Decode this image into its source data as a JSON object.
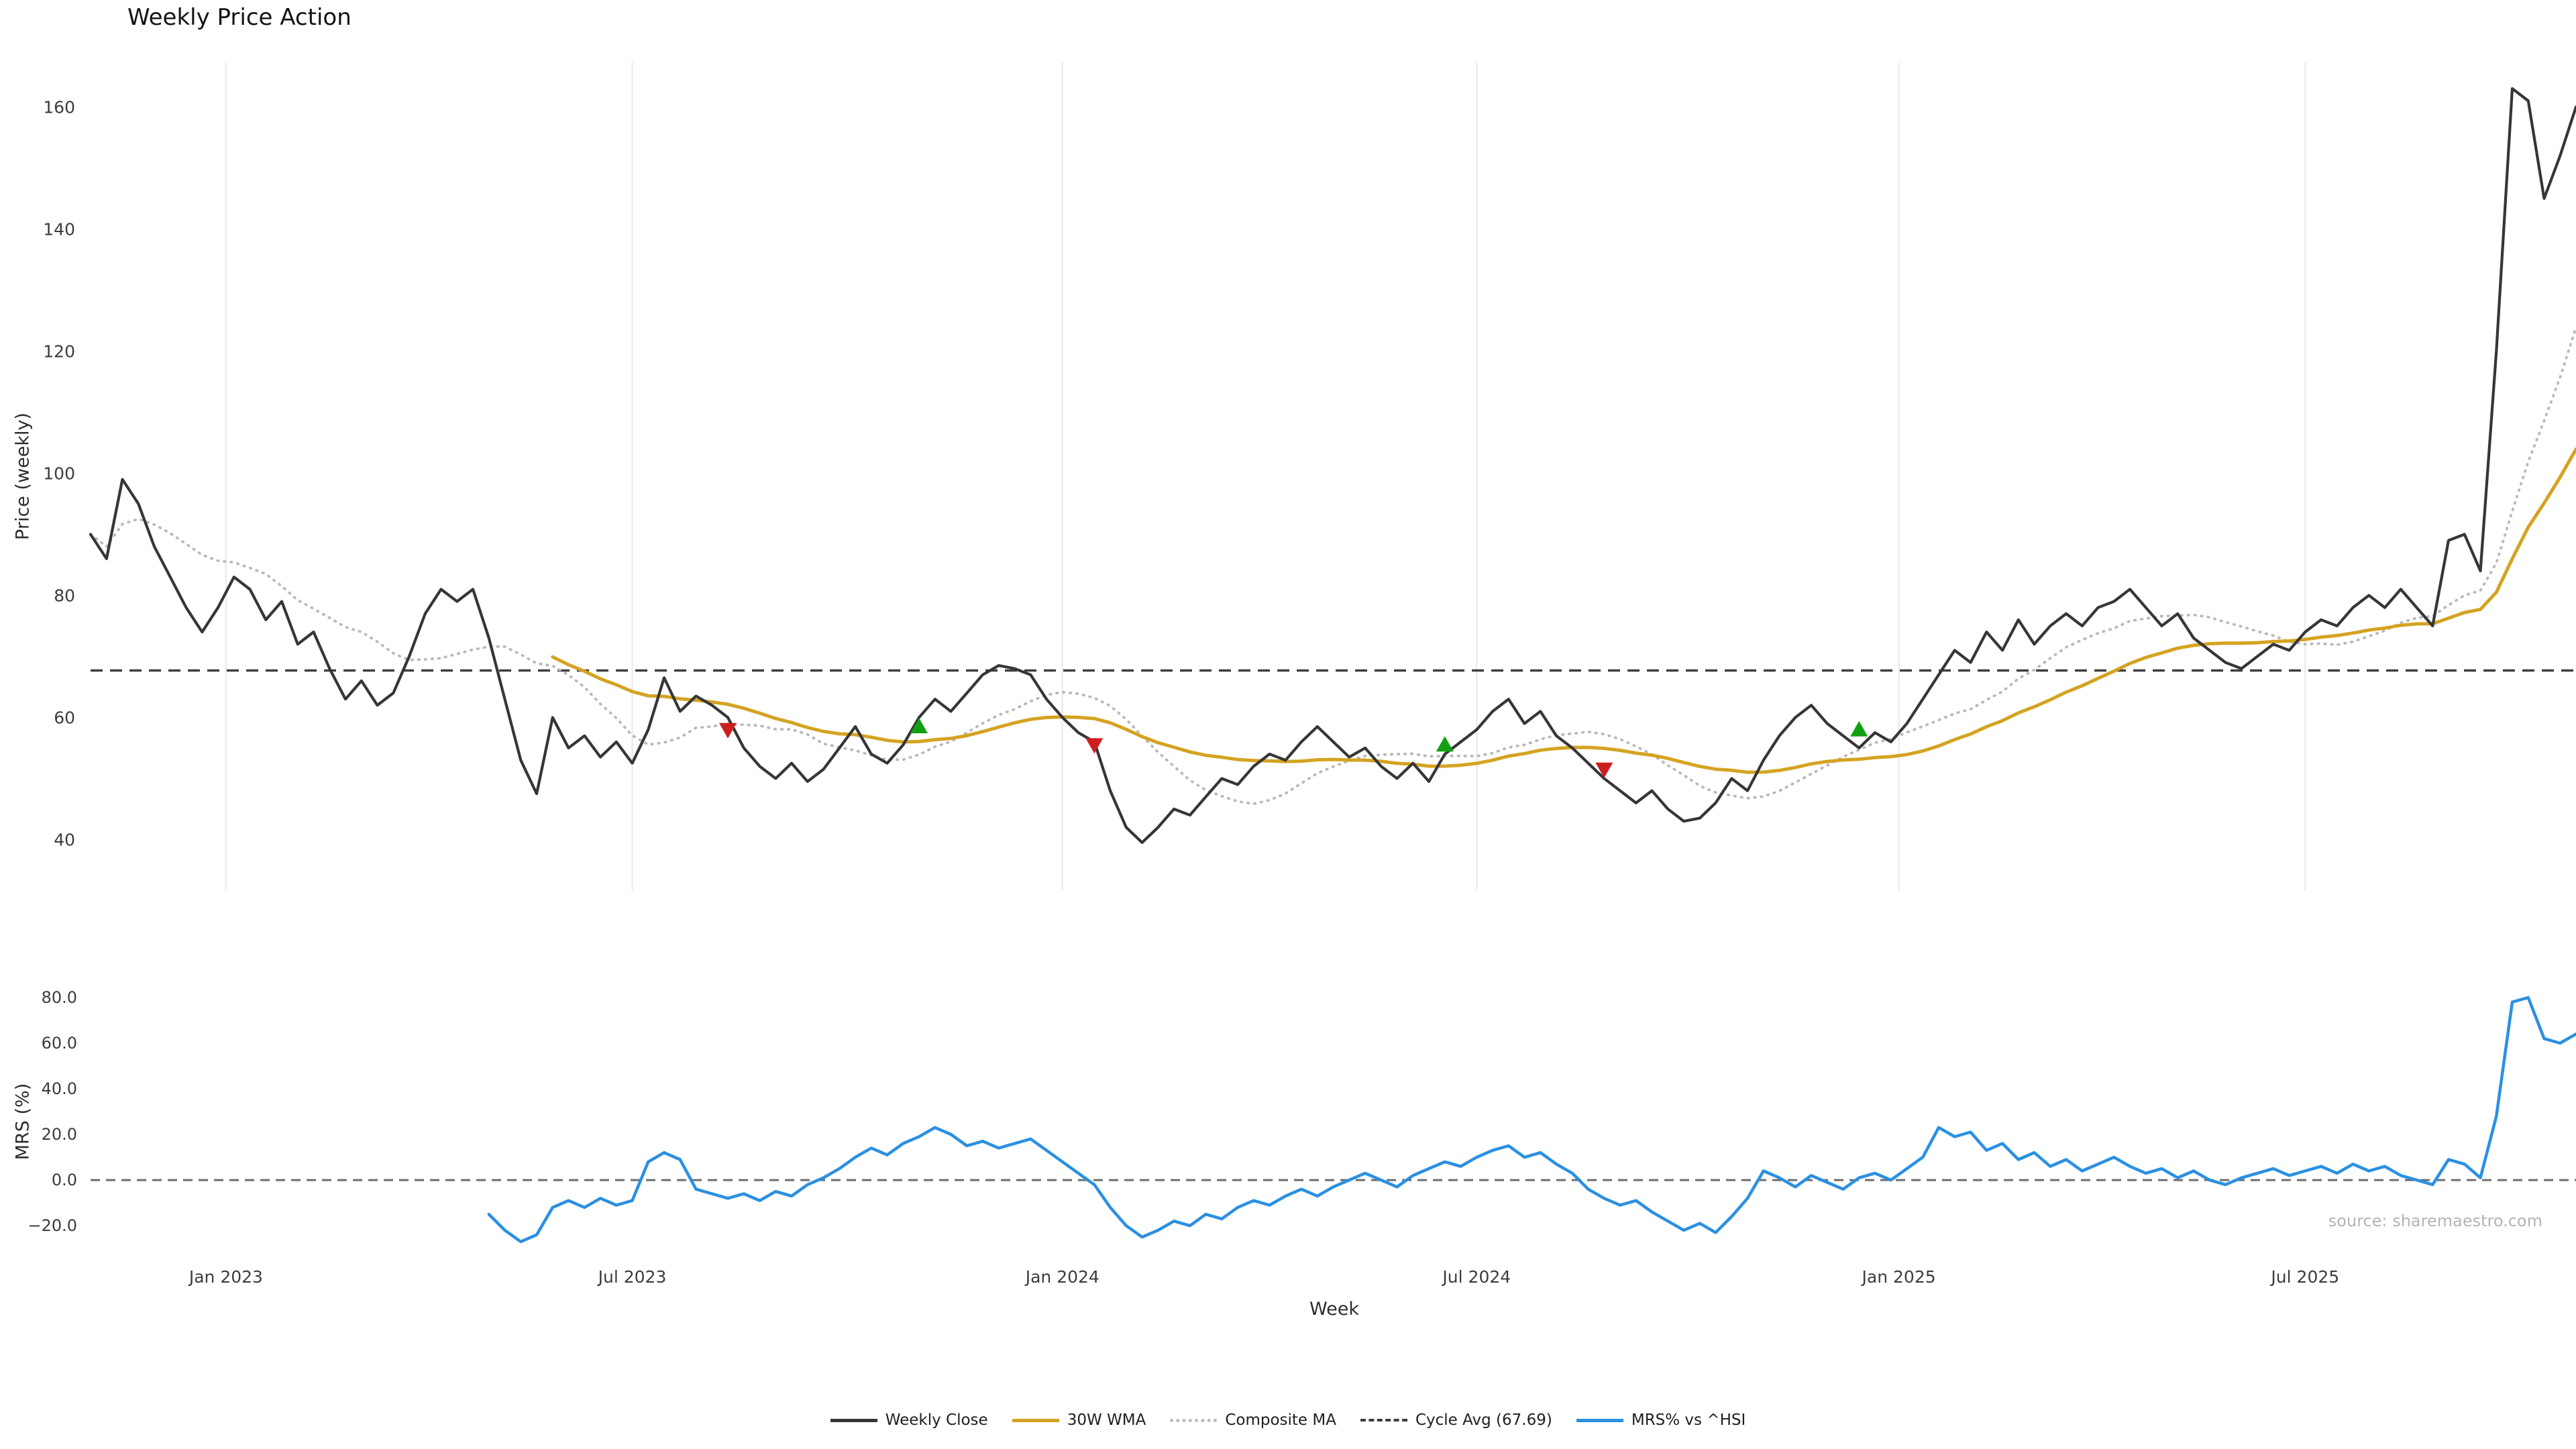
{
  "title": "Weekly Price Action",
  "source": "source: sharemaestro.com",
  "axes": {
    "price_ylabel": "Price (weekly)",
    "mrs_ylabel": "MRS (%)",
    "xlabel": "Week"
  },
  "legend": {
    "items": [
      {
        "label": "Weekly Close",
        "color": "#363636",
        "style": "solid"
      },
      {
        "label": "30W WMA",
        "color": "#d4a321",
        "style": "solid"
      },
      {
        "label": "Composite MA",
        "color": "#b9b9b9",
        "style": "dotted"
      },
      {
        "label": "Cycle Avg (67.69)",
        "color": "#3f3f3f",
        "style": "dashed"
      },
      {
        "label": "MRS% vs ^HSI",
        "color": "#2a90e2",
        "style": "solid"
      }
    ]
  },
  "colors": {
    "weekly_close": "#363636",
    "wma_30w": "#d4a321",
    "composite_ma": "#b9b9b9",
    "cycle_avg": "#3f3f3f",
    "mrs": "#2a90e2",
    "buy_signal": "#12a012",
    "sell_signal": "#cc1f1f",
    "gridline": "#ebebeb",
    "zero_line": "#6e6e6e"
  },
  "chart_data": {
    "type": "line",
    "title": "Weekly Price Action",
    "xlabel": "Week",
    "x_unit": "week_index",
    "n_weeks": 157,
    "x_ticks": [
      {
        "week": 8.5,
        "label": "Jan 2023"
      },
      {
        "week": 34,
        "label": "Jul 2023"
      },
      {
        "week": 61,
        "label": "Jan 2024"
      },
      {
        "week": 87,
        "label": "Jul 2024"
      },
      {
        "week": 113.5,
        "label": "Jan 2025"
      },
      {
        "week": 139,
        "label": "Jul 2025"
      }
    ],
    "price_panel": {
      "ylabel": "Price (weekly)",
      "y_ticks": [
        40,
        60,
        80,
        100,
        120,
        140,
        160
      ],
      "y_domain": [
        31.7,
        167.3
      ],
      "cycle_avg": 67.69,
      "series": [
        {
          "name": "Weekly Close",
          "style": "solid",
          "values": [
            90,
            86,
            99,
            95,
            88,
            83,
            78,
            74,
            78,
            83,
            81,
            76,
            79,
            72,
            74,
            68,
            63,
            66,
            62,
            64,
            70,
            77,
            81,
            79,
            81,
            73,
            63,
            53,
            47.5,
            60,
            55,
            57,
            53.5,
            56,
            52.5,
            58,
            66.5,
            61,
            63.5,
            62,
            60,
            55,
            52,
            50,
            52.5,
            49.5,
            51.5,
            55,
            58.5,
            54,
            52.5,
            55.5,
            60,
            63,
            61,
            64,
            67,
            68.5,
            68,
            67,
            63,
            60,
            57.5,
            56,
            48,
            42,
            39.5,
            42,
            45,
            44,
            47,
            50,
            49,
            52,
            54,
            53,
            56,
            58.5,
            56,
            53.5,
            55,
            52,
            50,
            52.5,
            49.5,
            54,
            56,
            58,
            61,
            63,
            59,
            61,
            57,
            55,
            52.5,
            50,
            48,
            46,
            48,
            45,
            43,
            43.5,
            46,
            50,
            48,
            53,
            57,
            60,
            62,
            59,
            57,
            55,
            57.5,
            56,
            59,
            63,
            67,
            71,
            69,
            74,
            71,
            76,
            72,
            75,
            77,
            75,
            78,
            79,
            81,
            78,
            75,
            77,
            73,
            71,
            69,
            68,
            70,
            72,
            71,
            74,
            76,
            75,
            78,
            80,
            78,
            81,
            78,
            75,
            89,
            90,
            84,
            120,
            163,
            161,
            145,
            152,
            160
          ]
        },
        {
          "name": "30W WMA",
          "style": "solid",
          "derived_from": "Weekly Close",
          "method": "linear_weighted_moving_average",
          "window": 30
        },
        {
          "name": "Composite MA",
          "style": "dotted",
          "derived_from": "Weekly Close",
          "method": "simple_moving_average",
          "window": 10
        },
        {
          "name": "Cycle Avg",
          "style": "dashed",
          "value": 67.69
        }
      ],
      "signals": {
        "buy": [
          {
            "week": 52,
            "price": 58.5
          },
          {
            "week": 85,
            "price": 55.5
          },
          {
            "week": 111,
            "price": 58
          }
        ],
        "sell": [
          {
            "week": 40,
            "price": 58
          },
          {
            "week": 63,
            "price": 55.5
          },
          {
            "week": 95,
            "price": 51.5
          }
        ]
      }
    },
    "mrs_panel": {
      "ylabel": "MRS (%)",
      "y_ticks": [
        -20,
        0,
        20,
        40,
        60,
        80
      ],
      "y_tick_labels": [
        "−20.0",
        "0.0",
        "20.0",
        "40.0",
        "60.0",
        "80.0"
      ],
      "y_domain": [
        -33.8,
        85
      ],
      "zero_line": 0,
      "series": [
        {
          "name": "MRS% vs ^HSI",
          "style": "solid",
          "start_week": 25,
          "values": [
            -15,
            -22,
            -27,
            -24,
            -12,
            -9,
            -12,
            -8,
            -11,
            -9,
            8,
            12,
            9,
            -4,
            -6,
            -8,
            -6,
            -9,
            -5,
            -7,
            -2,
            1,
            5,
            10,
            14,
            11,
            16,
            19,
            23,
            20,
            15,
            17,
            14,
            16,
            18,
            13,
            8,
            3,
            -2,
            -12,
            -20,
            -25,
            -22,
            -18,
            -20,
            -15,
            -17,
            -12,
            -9,
            -11,
            -7,
            -4,
            -7,
            -3,
            0,
            3,
            0,
            -3,
            2,
            5,
            8,
            6,
            10,
            13,
            15,
            10,
            12,
            7,
            3,
            -4,
            -8,
            -11,
            -9,
            -14,
            -18,
            -22,
            -19,
            -23,
            -16,
            -8,
            4,
            1,
            -3,
            2,
            -1,
            -4,
            1,
            3,
            0,
            5,
            10,
            23,
            19,
            21,
            13,
            16,
            9,
            12,
            6,
            9,
            4,
            7,
            10,
            6,
            3,
            5,
            1,
            4,
            0,
            -2,
            1,
            3,
            5,
            2,
            4,
            6,
            3,
            7,
            4,
            6,
            2,
            0,
            -2,
            9,
            7,
            1,
            28,
            78,
            80,
            62,
            60,
            64
          ]
        }
      ]
    }
  }
}
